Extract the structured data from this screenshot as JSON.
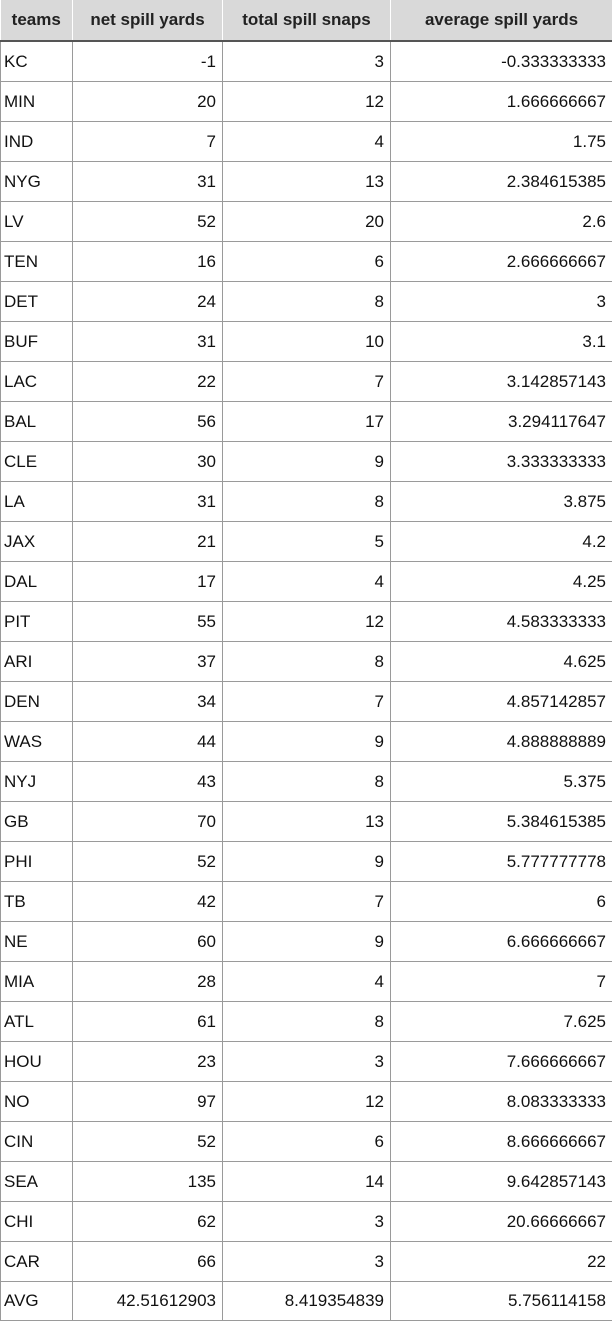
{
  "headers": [
    "teams",
    "net spill yards",
    "total spill snaps",
    "average spill yards"
  ],
  "rows": [
    [
      "KC",
      "-1",
      "3",
      "-0.333333333"
    ],
    [
      "MIN",
      "20",
      "12",
      "1.666666667"
    ],
    [
      "IND",
      "7",
      "4",
      "1.75"
    ],
    [
      "NYG",
      "31",
      "13",
      "2.384615385"
    ],
    [
      "LV",
      "52",
      "20",
      "2.6"
    ],
    [
      "TEN",
      "16",
      "6",
      "2.666666667"
    ],
    [
      "DET",
      "24",
      "8",
      "3"
    ],
    [
      "BUF",
      "31",
      "10",
      "3.1"
    ],
    [
      "LAC",
      "22",
      "7",
      "3.142857143"
    ],
    [
      "BAL",
      "56",
      "17",
      "3.294117647"
    ],
    [
      "CLE",
      "30",
      "9",
      "3.333333333"
    ],
    [
      "LA",
      "31",
      "8",
      "3.875"
    ],
    [
      "JAX",
      "21",
      "5",
      "4.2"
    ],
    [
      "DAL",
      "17",
      "4",
      "4.25"
    ],
    [
      "PIT",
      "55",
      "12",
      "4.583333333"
    ],
    [
      "ARI",
      "37",
      "8",
      "4.625"
    ],
    [
      "DEN",
      "34",
      "7",
      "4.857142857"
    ],
    [
      "WAS",
      "44",
      "9",
      "4.888888889"
    ],
    [
      "NYJ",
      "43",
      "8",
      "5.375"
    ],
    [
      "GB",
      "70",
      "13",
      "5.384615385"
    ],
    [
      "PHI",
      "52",
      "9",
      "5.777777778"
    ],
    [
      "TB",
      "42",
      "7",
      "6"
    ],
    [
      "NE",
      "60",
      "9",
      "6.666666667"
    ],
    [
      "MIA",
      "28",
      "4",
      "7"
    ],
    [
      "ATL",
      "61",
      "8",
      "7.625"
    ],
    [
      "HOU",
      "23",
      "3",
      "7.666666667"
    ],
    [
      "NO",
      "97",
      "12",
      "8.083333333"
    ],
    [
      "CIN",
      "52",
      "6",
      "8.666666667"
    ],
    [
      "SEA",
      "135",
      "14",
      "9.642857143"
    ],
    [
      "CHI",
      "62",
      "3",
      "20.66666667"
    ],
    [
      "CAR",
      "66",
      "3",
      "22"
    ],
    [
      "AVG",
      "42.51612903",
      "8.419354839",
      "5.756114158"
    ]
  ],
  "colors": {
    "header_bg": "#d9d9d9",
    "grid": "#9a9a9a",
    "header_rule": "#555555"
  }
}
